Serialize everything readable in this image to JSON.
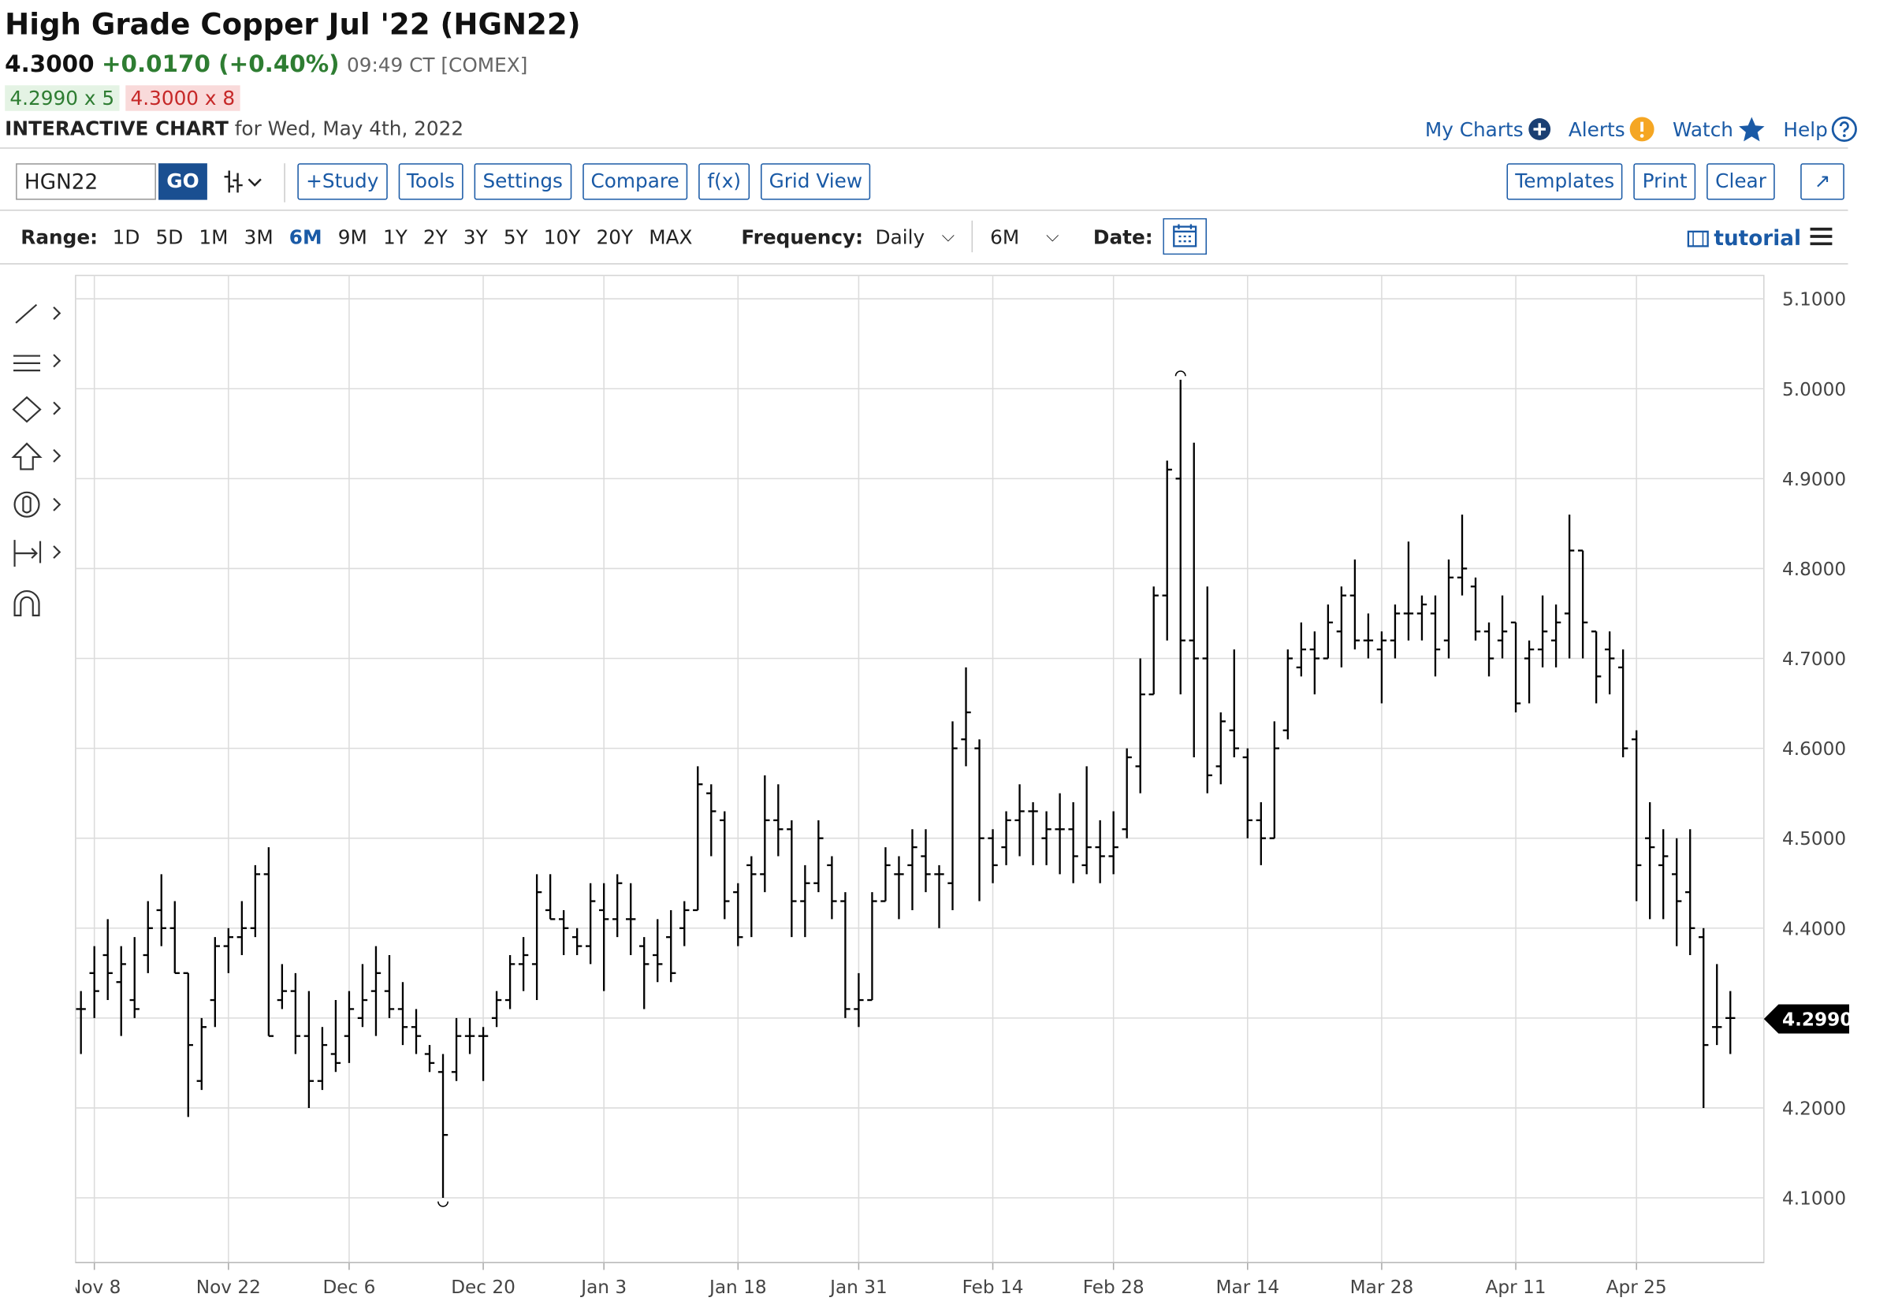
{
  "header": {
    "title": "High Grade Copper Jul '22 (HGN22)",
    "price": "4.3000",
    "change": "+0.0170 (+0.40%)",
    "time": "09:49 CT [COMEX]",
    "bid": "4.2990 x 5",
    "ask": "4.3000 x 8",
    "chart_label": "INTERACTIVE CHART",
    "date_text": "for Wed, May 4th, 2022"
  },
  "top_links": [
    "My Charts",
    "Alerts",
    "Watch",
    "Help"
  ],
  "toolbar": {
    "symbol": "HGN22",
    "go": "GO",
    "buttons": [
      "+Study",
      "Tools",
      "Settings",
      "Compare",
      "f(x)",
      "Grid View"
    ],
    "right_buttons": [
      "Templates",
      "Print",
      "Clear"
    ]
  },
  "range_bar": {
    "range_label": "Range:",
    "ranges": [
      "1D",
      "5D",
      "1M",
      "3M",
      "6M",
      "9M",
      "1Y",
      "2Y",
      "3Y",
      "5Y",
      "10Y",
      "20Y",
      "MAX"
    ],
    "active_range": 4,
    "frequency_label": "Frequency:",
    "frequency": "Daily",
    "period": "6M",
    "date_label": "Date:",
    "tutorial": "tutorial"
  },
  "chart_data": {
    "type": "ohlc",
    "color": "#000000",
    "ohlc": [
      [
        4.31,
        4.33,
        4.26,
        4.31
      ],
      [
        4.35,
        4.38,
        4.3,
        4.33
      ],
      [
        4.37,
        4.41,
        4.32,
        4.35
      ],
      [
        4.34,
        4.38,
        4.28,
        4.36
      ],
      [
        4.32,
        4.39,
        4.3,
        4.31
      ],
      [
        4.37,
        4.43,
        4.35,
        4.4
      ],
      [
        4.42,
        4.46,
        4.38,
        4.4
      ],
      [
        4.4,
        4.43,
        4.35,
        4.35
      ],
      [
        4.35,
        4.35,
        4.19,
        4.27
      ],
      [
        4.23,
        4.3,
        4.22,
        4.29
      ],
      [
        4.32,
        4.39,
        4.29,
        4.38
      ],
      [
        4.38,
        4.4,
        4.35,
        4.39
      ],
      [
        4.39,
        4.43,
        4.37,
        4.4
      ],
      [
        4.4,
        4.47,
        4.39,
        4.46
      ],
      [
        4.46,
        4.49,
        4.28,
        4.28
      ],
      [
        4.32,
        4.36,
        4.31,
        4.33
      ],
      [
        4.33,
        4.35,
        4.26,
        4.28
      ],
      [
        4.28,
        4.33,
        4.2,
        4.23
      ],
      [
        4.23,
        4.29,
        4.22,
        4.27
      ],
      [
        4.26,
        4.32,
        4.24,
        4.25
      ],
      [
        4.28,
        4.33,
        4.25,
        4.31
      ],
      [
        4.3,
        4.36,
        4.29,
        4.32
      ],
      [
        4.33,
        4.38,
        4.28,
        4.35
      ],
      [
        4.33,
        4.37,
        4.3,
        4.31
      ],
      [
        4.31,
        4.34,
        4.27,
        4.29
      ],
      [
        4.29,
        4.31,
        4.26,
        4.28
      ],
      [
        4.26,
        4.27,
        4.24,
        4.25
      ],
      [
        4.24,
        4.26,
        4.1,
        4.17
      ],
      [
        4.24,
        4.3,
        4.23,
        4.28
      ],
      [
        4.28,
        4.3,
        4.26,
        4.28
      ],
      [
        4.28,
        4.29,
        4.23,
        4.28
      ],
      [
        4.3,
        4.33,
        4.29,
        4.32
      ],
      [
        4.32,
        4.37,
        4.31,
        4.36
      ],
      [
        4.36,
        4.39,
        4.33,
        4.37
      ],
      [
        4.36,
        4.46,
        4.32,
        4.44
      ],
      [
        4.42,
        4.46,
        4.41,
        4.41
      ],
      [
        4.41,
        4.42,
        4.37,
        4.4
      ],
      [
        4.39,
        4.4,
        4.37,
        4.38
      ],
      [
        4.38,
        4.45,
        4.36,
        4.43
      ],
      [
        4.42,
        4.45,
        4.33,
        4.41
      ],
      [
        4.41,
        4.46,
        4.39,
        4.45
      ],
      [
        4.41,
        4.45,
        4.37,
        4.41
      ],
      [
        4.38,
        4.39,
        4.31,
        4.36
      ],
      [
        4.37,
        4.41,
        4.34,
        4.36
      ],
      [
        4.39,
        4.42,
        4.34,
        4.35
      ],
      [
        4.4,
        4.43,
        4.38,
        4.42
      ],
      [
        4.42,
        4.58,
        4.42,
        4.56
      ],
      [
        4.55,
        4.56,
        4.48,
        4.53
      ],
      [
        4.52,
        4.53,
        4.41,
        4.43
      ],
      [
        4.44,
        4.45,
        4.38,
        4.39
      ],
      [
        4.47,
        4.48,
        4.39,
        4.46
      ],
      [
        4.46,
        4.57,
        4.44,
        4.52
      ],
      [
        4.52,
        4.56,
        4.48,
        4.51
      ],
      [
        4.51,
        4.52,
        4.39,
        4.43
      ],
      [
        4.43,
        4.47,
        4.39,
        4.45
      ],
      [
        4.45,
        4.52,
        4.44,
        4.5
      ],
      [
        4.47,
        4.48,
        4.41,
        4.43
      ],
      [
        4.43,
        4.44,
        4.3,
        4.31
      ],
      [
        4.31,
        4.35,
        4.29,
        4.32
      ],
      [
        4.32,
        4.44,
        4.32,
        4.43
      ],
      [
        4.43,
        4.49,
        4.43,
        4.47
      ],
      [
        4.46,
        4.48,
        4.41,
        4.46
      ],
      [
        4.47,
        4.51,
        4.42,
        4.49
      ],
      [
        4.48,
        4.51,
        4.44,
        4.46
      ],
      [
        4.46,
        4.47,
        4.4,
        4.46
      ],
      [
        4.45,
        4.63,
        4.42,
        4.6
      ],
      [
        4.61,
        4.69,
        4.58,
        4.64
      ],
      [
        4.6,
        4.61,
        4.43,
        4.5
      ],
      [
        4.5,
        4.51,
        4.45,
        4.47
      ],
      [
        4.49,
        4.53,
        4.47,
        4.52
      ],
      [
        4.52,
        4.56,
        4.48,
        4.53
      ],
      [
        4.53,
        4.54,
        4.47,
        4.53
      ],
      [
        4.5,
        4.53,
        4.47,
        4.51
      ],
      [
        4.51,
        4.55,
        4.46,
        4.51
      ],
      [
        4.51,
        4.54,
        4.45,
        4.48
      ],
      [
        4.47,
        4.58,
        4.46,
        4.49
      ],
      [
        4.49,
        4.52,
        4.45,
        4.48
      ],
      [
        4.48,
        4.53,
        4.46,
        4.49
      ],
      [
        4.51,
        4.6,
        4.5,
        4.59
      ],
      [
        4.58,
        4.7,
        4.55,
        4.66
      ],
      [
        4.66,
        4.78,
        4.66,
        4.77
      ],
      [
        4.77,
        4.92,
        4.72,
        4.91
      ],
      [
        4.9,
        5.01,
        4.66,
        4.72
      ],
      [
        4.72,
        4.94,
        4.59,
        4.7
      ],
      [
        4.7,
        4.78,
        4.55,
        4.57
      ],
      [
        4.58,
        4.64,
        4.56,
        4.63
      ],
      [
        4.62,
        4.71,
        4.59,
        4.6
      ],
      [
        4.59,
        4.6,
        4.5,
        4.52
      ],
      [
        4.52,
        4.54,
        4.47,
        4.5
      ],
      [
        4.5,
        4.63,
        4.5,
        4.6
      ],
      [
        4.62,
        4.71,
        4.61,
        4.7
      ],
      [
        4.69,
        4.74,
        4.68,
        4.71
      ],
      [
        4.71,
        4.73,
        4.66,
        4.7
      ],
      [
        4.7,
        4.76,
        4.7,
        4.74
      ],
      [
        4.73,
        4.78,
        4.69,
        4.77
      ],
      [
        4.77,
        4.81,
        4.71,
        4.72
      ],
      [
        4.72,
        4.75,
        4.7,
        4.72
      ],
      [
        4.71,
        4.73,
        4.65,
        4.72
      ],
      [
        4.72,
        4.76,
        4.7,
        4.75
      ],
      [
        4.75,
        4.83,
        4.72,
        4.75
      ],
      [
        4.75,
        4.77,
        4.72,
        4.76
      ],
      [
        4.75,
        4.77,
        4.68,
        4.71
      ],
      [
        4.72,
        4.81,
        4.7,
        4.79
      ],
      [
        4.79,
        4.86,
        4.77,
        4.8
      ],
      [
        4.78,
        4.79,
        4.72,
        4.73
      ],
      [
        4.73,
        4.74,
        4.68,
        4.7
      ],
      [
        4.72,
        4.77,
        4.7,
        4.73
      ],
      [
        4.74,
        4.74,
        4.64,
        4.65
      ],
      [
        4.7,
        4.72,
        4.65,
        4.71
      ],
      [
        4.71,
        4.77,
        4.69,
        4.73
      ],
      [
        4.72,
        4.76,
        4.69,
        4.74
      ],
      [
        4.75,
        4.86,
        4.7,
        4.82
      ],
      [
        4.82,
        4.82,
        4.7,
        4.74
      ],
      [
        4.73,
        4.73,
        4.65,
        4.68
      ],
      [
        4.71,
        4.73,
        4.66,
        4.7
      ],
      [
        4.69,
        4.71,
        4.59,
        4.6
      ],
      [
        4.61,
        4.62,
        4.43,
        4.47
      ],
      [
        4.5,
        4.54,
        4.41,
        4.49
      ],
      [
        4.47,
        4.51,
        4.41,
        4.48
      ],
      [
        4.46,
        4.5,
        4.38,
        4.43
      ],
      [
        4.44,
        4.51,
        4.37,
        4.4
      ],
      [
        4.39,
        4.4,
        4.2,
        4.27
      ],
      [
        4.29,
        4.36,
        4.27,
        4.29
      ],
      [
        4.3,
        4.33,
        4.26,
        4.3
      ]
    ],
    "xlim": [
      -0.4,
      125.5
    ],
    "xticks": [
      {
        "value": 1,
        "label": "Nov 8"
      },
      {
        "value": 11,
        "label": "Nov 22"
      },
      {
        "value": 20,
        "label": "Dec 6"
      },
      {
        "value": 30,
        "label": "Dec 20"
      },
      {
        "value": 39,
        "label": "Jan 3"
      },
      {
        "value": 49,
        "label": "Jan 18"
      },
      {
        "value": 58,
        "label": "Jan 31"
      },
      {
        "value": 68,
        "label": "Feb 14"
      },
      {
        "value": 77,
        "label": "Feb 28"
      },
      {
        "value": 87,
        "label": "Mar 14"
      },
      {
        "value": 97,
        "label": "Mar 28"
      },
      {
        "value": 107,
        "label": "Apr 11"
      },
      {
        "value": 116,
        "label": "Apr 25"
      }
    ],
    "ylim": [
      4.028,
      5.126
    ],
    "yticks": [
      {
        "value": 4.1,
        "label": "4.1000"
      },
      {
        "value": 4.2,
        "label": "4.2000"
      },
      {
        "value": 4.3,
        "label": "4.3000"
      },
      {
        "value": 4.4,
        "label": "4.4000"
      },
      {
        "value": 4.5,
        "label": "4.5000"
      },
      {
        "value": 4.6,
        "label": "4.6000"
      },
      {
        "value": 4.7,
        "label": "4.7000"
      },
      {
        "value": 4.8,
        "label": "4.8000"
      },
      {
        "value": 4.9,
        "label": "4.9000"
      },
      {
        "value": 5.0,
        "label": "5.0000"
      },
      {
        "value": 5.1,
        "label": "5.1000"
      }
    ],
    "last_price": {
      "value": 4.299,
      "label": "4.2990"
    },
    "grid": true
  }
}
